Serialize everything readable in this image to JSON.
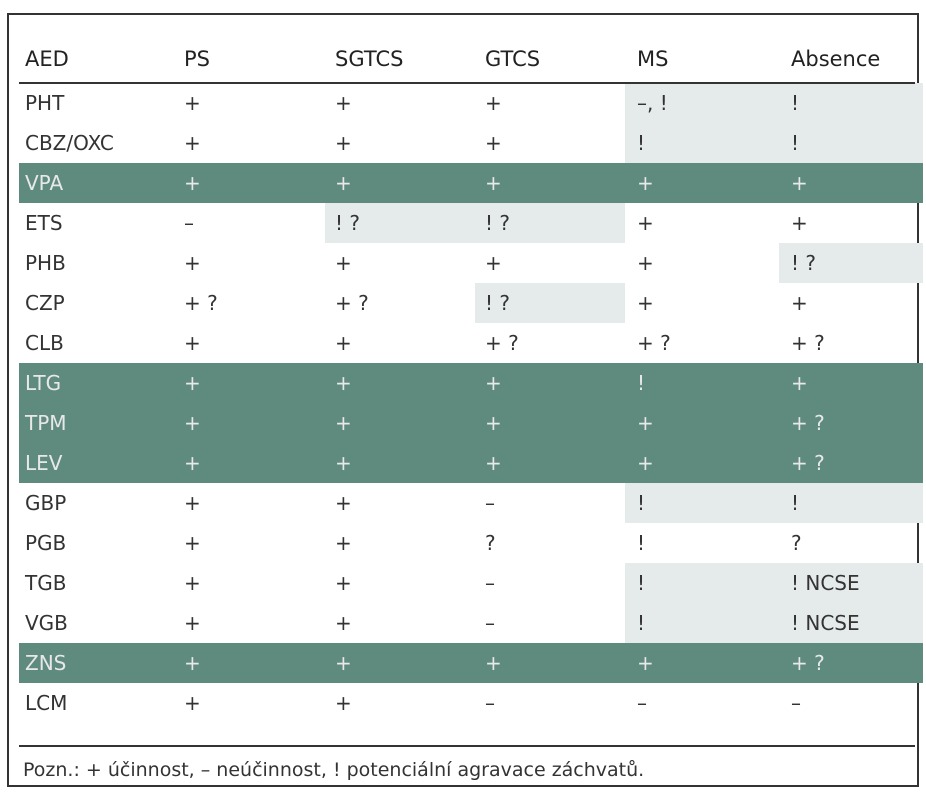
{
  "table": {
    "headers": [
      "AED",
      "PS",
      "SGTCS",
      "GTCS",
      "MS",
      "Absence"
    ],
    "rows": [
      {
        "cells": [
          "PHT",
          "+",
          "+",
          "+",
          "–, !",
          "!"
        ],
        "highlight": false
      },
      {
        "cells": [
          "CBZ/OXC",
          "+",
          "+",
          "+",
          "!",
          "!"
        ],
        "highlight": false
      },
      {
        "cells": [
          "VPA",
          "+",
          "+",
          "+",
          "+",
          "+"
        ],
        "highlight": true
      },
      {
        "cells": [
          "ETS",
          "–",
          "! ?",
          "! ?",
          "+",
          "+"
        ],
        "highlight": false
      },
      {
        "cells": [
          "PHB",
          "+",
          "+",
          "+",
          "+",
          "! ?"
        ],
        "highlight": false
      },
      {
        "cells": [
          "CZP",
          "+ ?",
          "+ ?",
          "! ?",
          "+",
          "+"
        ],
        "highlight": false
      },
      {
        "cells": [
          "CLB",
          "+",
          "+",
          "+ ?",
          "+ ?",
          "+ ?"
        ],
        "highlight": false
      },
      {
        "cells": [
          "LTG",
          "+",
          "+",
          "+",
          "!",
          "+"
        ],
        "highlight": true
      },
      {
        "cells": [
          "TPM",
          "+",
          "+",
          "+",
          "+",
          "+ ?"
        ],
        "highlight": true
      },
      {
        "cells": [
          "LEV",
          "+",
          "+",
          "+",
          "+",
          "+ ?"
        ],
        "highlight": true
      },
      {
        "cells": [
          "GBP",
          "+",
          "+",
          "–",
          "!",
          "!"
        ],
        "highlight": false
      },
      {
        "cells": [
          "PGB",
          "+",
          "+",
          "?",
          "!",
          "?"
        ],
        "highlight": false
      },
      {
        "cells": [
          "TGB",
          "+",
          "+",
          "–",
          "!",
          "! NCSE"
        ],
        "highlight": false
      },
      {
        "cells": [
          "VGB",
          "+",
          "+",
          "–",
          "!",
          "! NCSE"
        ],
        "highlight": false
      },
      {
        "cells": [
          "ZNS",
          "+",
          "+",
          "+",
          "+",
          "+ ?"
        ],
        "highlight": true
      },
      {
        "cells": [
          "LCM",
          "+",
          "+",
          "–",
          "–",
          "–"
        ],
        "highlight": false
      }
    ]
  },
  "note": "Pozn.: + účinnost, – neúčinnost, ! potenciální agravace záchvatů.",
  "colors": {
    "highlight_row": "#5e8b7e",
    "light_cell": "#e5ebea",
    "rule": "#333333"
  }
}
